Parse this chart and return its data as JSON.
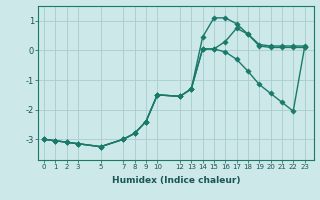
{
  "xlabel": "Humidex (Indice chaleur)",
  "bg_color": "#cce8e8",
  "grid_color": "#aacccc",
  "line_color": "#1a7a6a",
  "xlim": [
    -0.5,
    23.8
  ],
  "ylim": [
    -3.7,
    1.5
  ],
  "xticks": [
    0,
    1,
    2,
    3,
    5,
    7,
    8,
    9,
    10,
    12,
    13,
    14,
    15,
    16,
    17,
    18,
    19,
    20,
    21,
    22,
    23
  ],
  "yticks": [
    -3,
    -2,
    -1,
    0,
    1
  ],
  "curve_upper_x": [
    0,
    1,
    2,
    3,
    5,
    7,
    8,
    9,
    10,
    12,
    13,
    14,
    15,
    16,
    17,
    18,
    19,
    20,
    21,
    22,
    23
  ],
  "curve_upper_y": [
    -3.0,
    -3.05,
    -3.1,
    -3.15,
    -3.25,
    -3.0,
    -2.8,
    -2.4,
    -1.5,
    -1.55,
    -1.3,
    0.45,
    1.1,
    1.1,
    0.9,
    0.55,
    0.2,
    0.15,
    0.15,
    0.15,
    0.15
  ],
  "curve_mid_x": [
    0,
    1,
    2,
    3,
    5,
    7,
    8,
    9,
    10,
    12,
    13,
    14,
    15,
    16,
    17,
    18,
    19,
    20,
    21,
    22,
    23
  ],
  "curve_mid_y": [
    -3.0,
    -3.05,
    -3.1,
    -3.15,
    -3.25,
    -3.0,
    -2.8,
    -2.4,
    -1.5,
    -1.55,
    -1.3,
    0.05,
    0.05,
    0.3,
    0.75,
    0.55,
    0.15,
    0.1,
    0.1,
    0.1,
    0.1
  ],
  "curve_lower_x": [
    0,
    1,
    2,
    3,
    5,
    7,
    8,
    9,
    10,
    12,
    13,
    14,
    15,
    16,
    17,
    18,
    19,
    20,
    21,
    22,
    23
  ],
  "curve_lower_y": [
    -3.0,
    -3.05,
    -3.1,
    -3.15,
    -3.25,
    -3.0,
    -2.8,
    -2.4,
    -1.5,
    -1.55,
    -1.3,
    0.05,
    0.05,
    -0.05,
    -0.3,
    -0.7,
    -1.15,
    -1.45,
    -1.75,
    -2.05,
    0.1
  ]
}
